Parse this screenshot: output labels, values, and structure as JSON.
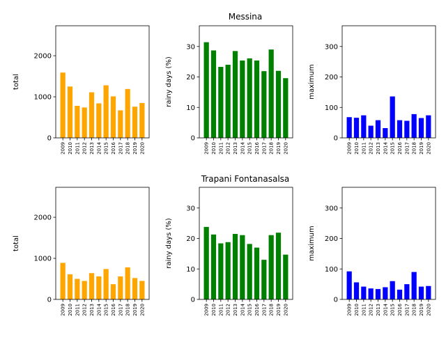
{
  "rows": [
    {
      "title": "Messina"
    },
    {
      "title": "Trapani Fontanasalsa"
    }
  ],
  "chart_data": [
    {
      "type": "bar",
      "title": "",
      "xlabel": "",
      "ylabel": "total",
      "categories": [
        "2009",
        "2010",
        "2011",
        "2012",
        "2013",
        "2014",
        "2015",
        "2016",
        "2017",
        "2018",
        "2019",
        "2020"
      ],
      "values": [
        1590,
        1250,
        780,
        740,
        1110,
        840,
        1280,
        1010,
        670,
        1190,
        760,
        850
      ],
      "ylim": [
        0,
        2730
      ],
      "yticks": [
        0,
        1000,
        2000
      ],
      "color": "#ffa500"
    },
    {
      "type": "bar",
      "title": "",
      "xlabel": "",
      "ylabel": "rainy days (%)",
      "categories": [
        "2009",
        "2010",
        "2011",
        "2012",
        "2013",
        "2014",
        "2015",
        "2016",
        "2017",
        "2018",
        "2019",
        "2020"
      ],
      "values": [
        31.4,
        28.7,
        23.3,
        24.0,
        28.5,
        25.4,
        26.1,
        25.4,
        21.9,
        29.0,
        22.0,
        19.6
      ],
      "ylim": [
        0,
        36.8
      ],
      "yticks": [
        0,
        10,
        20,
        30
      ],
      "color": "#008000"
    },
    {
      "type": "bar",
      "title": "",
      "xlabel": "",
      "ylabel": "maximum",
      "categories": [
        "2009",
        "2010",
        "2011",
        "2012",
        "2013",
        "2014",
        "2015",
        "2016",
        "2017",
        "2018",
        "2019",
        "2020"
      ],
      "values": [
        68,
        66,
        74,
        40,
        58,
        32,
        136,
        58,
        56,
        78,
        65,
        74
      ],
      "ylim": [
        0,
        368
      ],
      "yticks": [
        0,
        100,
        200,
        300
      ],
      "color": "#0000ff"
    },
    {
      "type": "bar",
      "title": "",
      "xlabel": "",
      "ylabel": "total",
      "categories": [
        "2009",
        "2010",
        "2011",
        "2012",
        "2013",
        "2014",
        "2015",
        "2016",
        "2017",
        "2018",
        "2019",
        "2020"
      ],
      "values": [
        890,
        610,
        500,
        450,
        640,
        560,
        740,
        370,
        560,
        780,
        520,
        450
      ],
      "ylim": [
        0,
        2730
      ],
      "yticks": [
        0,
        1000,
        2000
      ],
      "color": "#ffa500"
    },
    {
      "type": "bar",
      "title": "",
      "xlabel": "",
      "ylabel": "rainy days (%)",
      "categories": [
        "2009",
        "2010",
        "2011",
        "2012",
        "2013",
        "2014",
        "2015",
        "2016",
        "2017",
        "2018",
        "2019",
        "2020"
      ],
      "values": [
        23.8,
        21.3,
        18.4,
        18.8,
        21.5,
        21.1,
        18.2,
        17.0,
        13.0,
        21.1,
        21.9,
        14.7
      ],
      "ylim": [
        0,
        36.8
      ],
      "yticks": [
        0,
        10,
        20,
        30
      ],
      "color": "#008000"
    },
    {
      "type": "bar",
      "title": "",
      "xlabel": "",
      "ylabel": "maximum",
      "categories": [
        "2009",
        "2010",
        "2011",
        "2012",
        "2013",
        "2014",
        "2015",
        "2016",
        "2017",
        "2018",
        "2019",
        "2020"
      ],
      "values": [
        92,
        56,
        42,
        36,
        34,
        40,
        60,
        32,
        50,
        90,
        42,
        44
      ],
      "ylim": [
        0,
        368
      ],
      "yticks": [
        0,
        100,
        200,
        300
      ],
      "color": "#0000ff"
    }
  ]
}
